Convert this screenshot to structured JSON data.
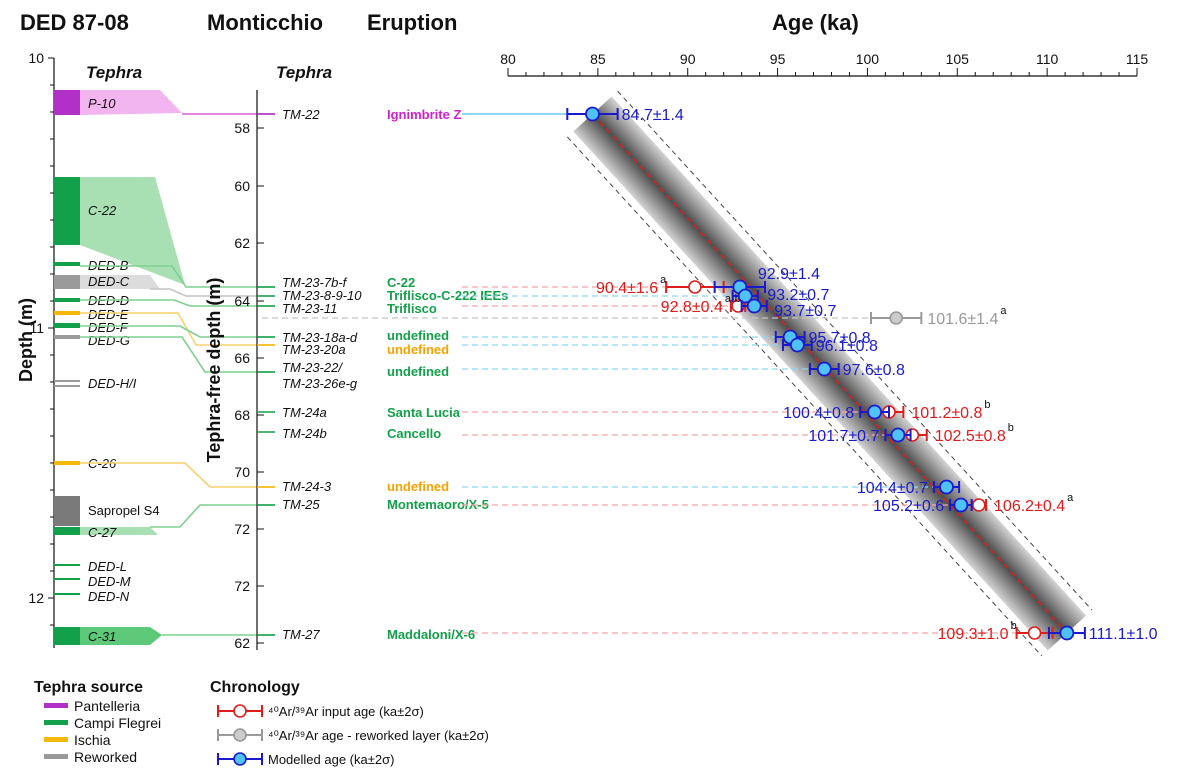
{
  "headers": {
    "core": "DED 87-08",
    "site": "Monticchio",
    "eruption": "Eruption",
    "age": "Age (ka)",
    "tephra_left": "Tephra",
    "tephra_mid": "Tephra"
  },
  "chart_data": [
    {
      "type": "scatter",
      "title": "Age (ka)",
      "xlabel": "Age (ka)",
      "xlim": [
        80,
        115
      ],
      "xticks": [
        80,
        85,
        90,
        95,
        100,
        105,
        110,
        115
      ],
      "modelled": [
        {
          "layer": "TM-22",
          "eruption": "Ignimbrite Z",
          "age": 84.7,
          "err": 1.4,
          "label": "84.7±1.4"
        },
        {
          "layer": "TM-23-7b-f",
          "eruption": "C-22",
          "age": 92.9,
          "err": 1.4,
          "label": "92.9±1.4"
        },
        {
          "layer": "TM-23-8-9-10",
          "eruption": "Triflisco-C-222 IEEs",
          "age": 93.2,
          "err": 0.7,
          "label": "93.2±0.7"
        },
        {
          "layer": "TM-23-11",
          "eruption": "Triflisco",
          "age": 93.7,
          "err": 0.7,
          "label": "93.7±0.7"
        },
        {
          "layer": "TM-23-18a-d",
          "eruption": "undefined",
          "age": 95.7,
          "err": 0.8,
          "label": "95.7±0.8"
        },
        {
          "layer": "TM-23-20a",
          "eruption": "undefined",
          "age": 96.1,
          "err": 0.8,
          "label": "96.1±0.8"
        },
        {
          "layer": "TM-23-22/TM-23-26e-g",
          "eruption": "undefined",
          "age": 97.6,
          "err": 0.8,
          "label": "97.6±0.8"
        },
        {
          "layer": "TM-24a",
          "eruption": "Santa Lucia",
          "age": 100.4,
          "err": 0.8,
          "label": "100.4±0.8"
        },
        {
          "layer": "TM-24b",
          "eruption": "Cancello",
          "age": 101.7,
          "err": 0.7,
          "label": "101.7±0.7"
        },
        {
          "layer": "TM-24-3",
          "eruption": "undefined",
          "age": 104.4,
          "err": 0.7,
          "label": "104.4±0.7"
        },
        {
          "layer": "TM-25",
          "eruption": "Montemaoro/X-5",
          "age": 105.2,
          "err": 0.6,
          "label": "105.2±0.6"
        },
        {
          "layer": "TM-27",
          "eruption": "Maddaloni/X-6",
          "age": 111.1,
          "err": 1.0,
          "label": "111.1±1.0"
        }
      ],
      "input_ages": [
        {
          "layer": "TM-23-7b-f",
          "age": 90.4,
          "err": 1.6,
          "label": "90.4±1.6",
          "sup": "a"
        },
        {
          "layer": "TM-23-11",
          "age": 92.8,
          "err": 0.4,
          "label": "92.8±0.4",
          "sup": "a-b"
        },
        {
          "layer": "TM-24a",
          "age": 101.2,
          "err": 0.8,
          "label": "101.2±0.8",
          "sup": "b"
        },
        {
          "layer": "TM-24b",
          "age": 102.5,
          "err": 0.8,
          "label": "102.5±0.8",
          "sup": "b"
        },
        {
          "layer": "TM-25",
          "age": 106.2,
          "err": 0.4,
          "label": "106.2±0.4",
          "sup": "a"
        },
        {
          "layer": "TM-27",
          "age": 109.3,
          "err": 1.0,
          "label": "109.3±1.0",
          "sup": "b"
        }
      ],
      "reworked_ages": [
        {
          "age": 101.6,
          "err": 1.4,
          "label": "101.6±1.4",
          "sup": "a"
        }
      ]
    },
    {
      "type": "table",
      "title": "Tephra-free depth (m)",
      "ylabel": "Tephra-free depth (m)",
      "ticks": [
        "58",
        "60",
        "62",
        "64",
        "66",
        "68",
        "70",
        "72",
        "72",
        "62"
      ],
      "layers": [
        "TM-22",
        "TM-23-7b-f",
        "TM-23-8-9-10",
        "TM-23-11",
        "TM-23-18a-d",
        "TM-23-20a",
        "TM-23-22/",
        "TM-23-26e-g",
        "TM-24a",
        "TM-24b",
        "TM-24-3",
        "TM-25",
        "TM-27"
      ]
    },
    {
      "type": "table",
      "title": "Depth (m)",
      "ylabel": "Depth (m)",
      "ticks": [
        "10",
        "11",
        "12"
      ],
      "units": [
        "P-10",
        "C-22",
        "DED-B",
        "DED-C",
        "DED-D",
        "DED-E",
        "DED-F",
        "DED-G",
        "DED-H/I",
        "C-26",
        "Sapropel S4",
        "C-27",
        "DED-L",
        "DED-M",
        "DED-N",
        "C-31"
      ]
    }
  ],
  "legend": {
    "source_title": "Tephra source",
    "sources": [
      {
        "label": "Pantelleria",
        "color": "#b030c8"
      },
      {
        "label": "Campi Flegrei",
        "color": "#13a04a"
      },
      {
        "label": "Ischia",
        "color": "#f5b70a"
      },
      {
        "label": "Reworked",
        "color": "#9a9a9a"
      }
    ],
    "chronology_title": "Chronology",
    "chronology": [
      {
        "label": "⁴⁰Ar/³⁹Ar input age (ka±2σ)",
        "color": "#dd1c1c"
      },
      {
        "label": "⁴⁰Ar/³⁹Ar age - reworked layer (ka±2σ)",
        "color": "#999999"
      },
      {
        "label": "Modelled age (ka±2σ)",
        "color": "#1a1acc"
      }
    ]
  },
  "colors": {
    "pantelleria": "#b030c8",
    "campi_flegrei": "#13a04a",
    "ischia": "#f5b70a",
    "reworked": "#9a9a9a",
    "input": "#dd1c1c",
    "modelled": "#1a1acc",
    "marker_fill": "#4fc3f7"
  }
}
